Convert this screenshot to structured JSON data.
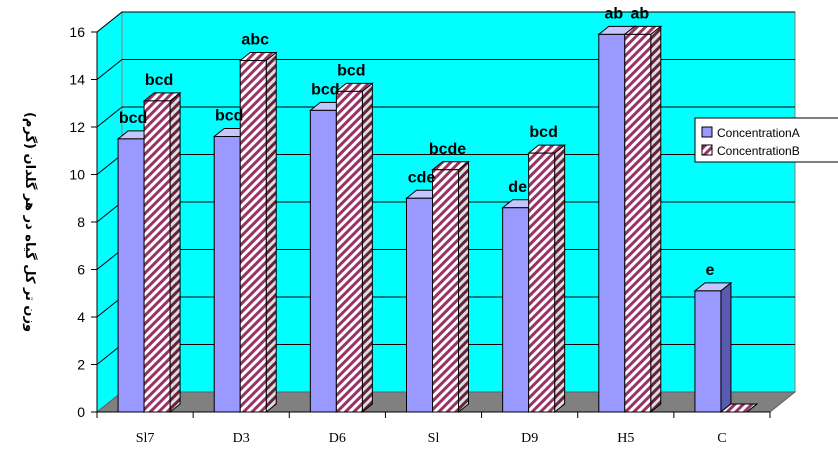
{
  "chart_data": {
    "type": "bar",
    "categories": [
      "Sl7",
      "D3",
      "D6",
      "Sl",
      "D9",
      "H5",
      "C"
    ],
    "series": [
      {
        "name": "ConcentrationA",
        "values": [
          11.5,
          11.6,
          12.7,
          9.0,
          8.6,
          15.9,
          5.1
        ],
        "labels": [
          "bcd",
          "bcd",
          "bcd",
          "cde",
          "de",
          "ab",
          "e"
        ],
        "color": "#9999ff"
      },
      {
        "name": "ConcentrationB",
        "values": [
          13.1,
          14.8,
          13.5,
          10.2,
          10.9,
          15.9,
          0
        ],
        "labels": [
          "bcd",
          "abc",
          "bcd",
          "bcde",
          "bcd",
          "ab",
          ""
        ],
        "color": "#993366"
      }
    ],
    "ylabel": "وزن تر کل گیاه در هر گلدان (گرم)",
    "yticks": [
      "0",
      "2",
      "4",
      "6",
      "8",
      "10",
      "12",
      "14",
      "16"
    ],
    "ylim": [
      0,
      16
    ],
    "grid": true,
    "legend_position": "right",
    "wall_color": "#00ffff",
    "floor_color": "#808080"
  }
}
